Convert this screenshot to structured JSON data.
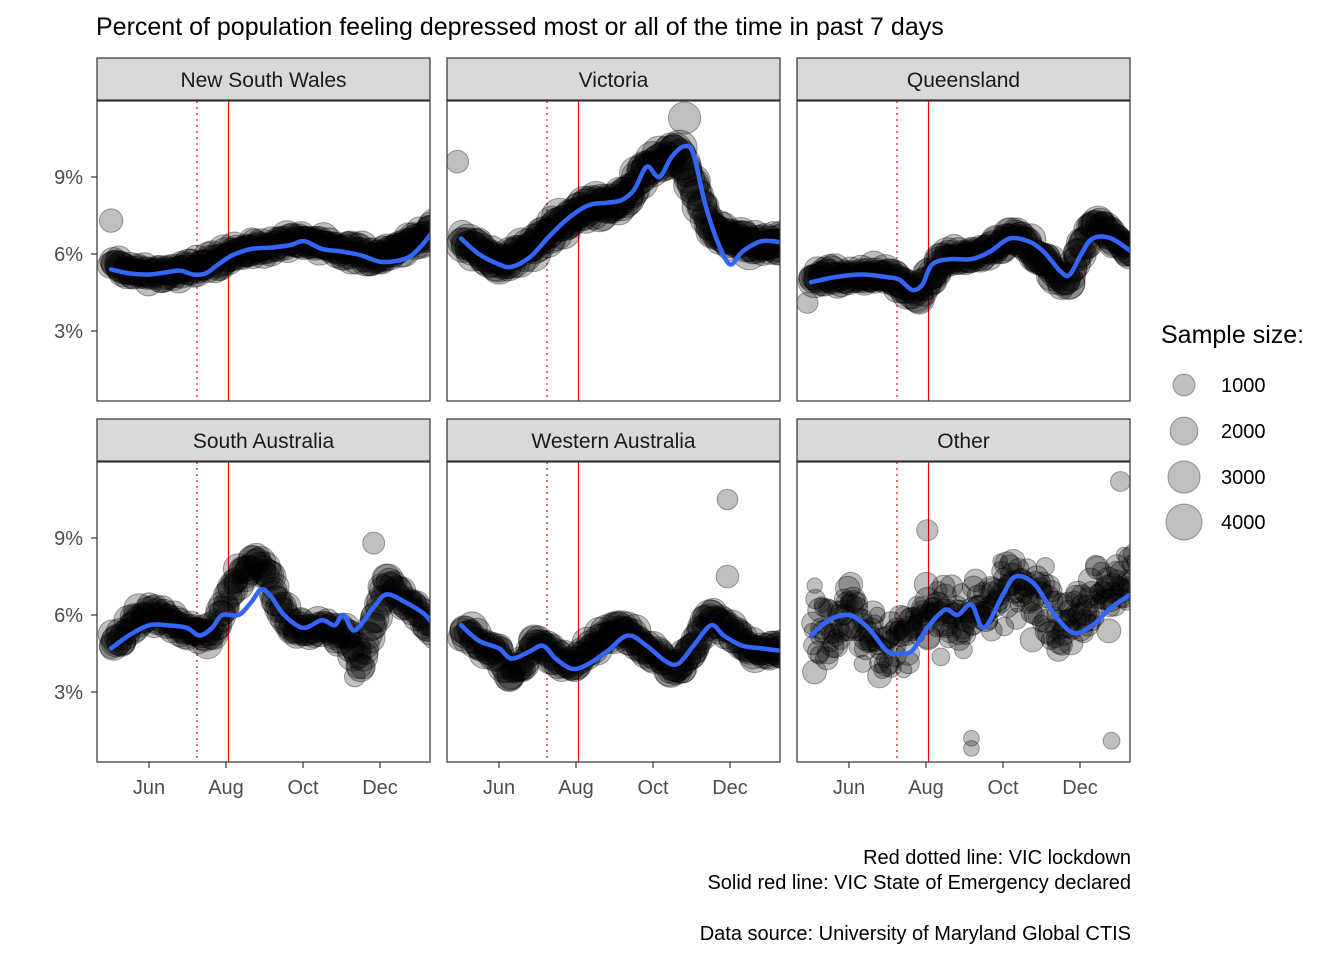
{
  "chart_data": {
    "type": "scatter",
    "title": "Percent of population feeling depressed most or all of the time in past 7 days",
    "xlabel": "",
    "ylabel": "",
    "x_ticks": [
      "Jun",
      "Aug",
      "Oct",
      "Dec"
    ],
    "y_ticks": [
      "3%",
      "6%",
      "9%"
    ],
    "ylim": [
      0,
      12
    ],
    "grid": false,
    "vlines": [
      {
        "date": "2020-07-08",
        "style": "dotted",
        "color": "#ff0000"
      },
      {
        "date": "2020-08-02",
        "style": "solid",
        "color": "#ff0000"
      }
    ],
    "smooth_color": "#3366ff",
    "point_color": "#000000",
    "point_alpha": 0.25,
    "legend": {
      "title": "Sample size:",
      "position": "right",
      "entries": [
        1000,
        2000,
        3000,
        4000
      ]
    },
    "panels": [
      {
        "name": "New South Wales",
        "smooth": [
          [
            "2020-05-01",
            5.4
          ],
          [
            "2020-05-15",
            5.25
          ],
          [
            "2020-05-31",
            5.2
          ],
          [
            "2020-06-15",
            5.3
          ],
          [
            "2020-06-25",
            5.35
          ],
          [
            "2020-07-05",
            5.2
          ],
          [
            "2020-07-15",
            5.25
          ],
          [
            "2020-07-25",
            5.6
          ],
          [
            "2020-08-05",
            5.95
          ],
          [
            "2020-08-20",
            6.2
          ],
          [
            "2020-09-05",
            6.25
          ],
          [
            "2020-09-20",
            6.35
          ],
          [
            "2020-10-01",
            6.5
          ],
          [
            "2020-10-15",
            6.2
          ],
          [
            "2020-10-30",
            6.1
          ],
          [
            "2020-11-15",
            5.95
          ],
          [
            "2020-11-30",
            5.7
          ],
          [
            "2020-12-15",
            5.75
          ],
          [
            "2020-12-25",
            5.95
          ],
          [
            "2021-01-05",
            6.5
          ],
          [
            "2021-01-12",
            7.0
          ]
        ],
        "points_center": [
          [
            "2020-05-01",
            5.6
          ],
          [
            "2020-06-01",
            5.2
          ],
          [
            "2020-07-01",
            5.4
          ],
          [
            "2020-08-01",
            5.9
          ],
          [
            "2020-09-01",
            6.3
          ],
          [
            "2020-10-01",
            6.6
          ],
          [
            "2020-11-01",
            6.1
          ],
          [
            "2020-12-01",
            5.8
          ],
          [
            "2021-01-10",
            7.0
          ]
        ],
        "spread": 0.45,
        "size_range": [
          1500,
          3000
        ],
        "outliers": [
          [
            "2020-05-01",
            7.3,
            1200
          ]
        ]
      },
      {
        "name": "Victoria",
        "smooth": [
          [
            "2020-05-01",
            6.6
          ],
          [
            "2020-05-15",
            6.0
          ],
          [
            "2020-05-31",
            5.6
          ],
          [
            "2020-06-10",
            5.5
          ],
          [
            "2020-06-25",
            5.9
          ],
          [
            "2020-07-10",
            6.7
          ],
          [
            "2020-07-25",
            7.4
          ],
          [
            "2020-08-10",
            7.9
          ],
          [
            "2020-08-25",
            8.0
          ],
          [
            "2020-09-05",
            8.1
          ],
          [
            "2020-09-15",
            8.5
          ],
          [
            "2020-09-25",
            9.4
          ],
          [
            "2020-10-05",
            9.0
          ],
          [
            "2020-10-15",
            9.8
          ],
          [
            "2020-10-25",
            10.2
          ],
          [
            "2020-11-01",
            9.9
          ],
          [
            "2020-11-10",
            8.0
          ],
          [
            "2020-11-20",
            6.5
          ],
          [
            "2020-11-30",
            5.6
          ],
          [
            "2020-12-10",
            6.1
          ],
          [
            "2020-12-25",
            6.5
          ],
          [
            "2021-01-10",
            6.45
          ]
        ],
        "points_center": [
          [
            "2020-05-01",
            6.6
          ],
          [
            "2020-05-31",
            5.6
          ],
          [
            "2020-07-05",
            6.5
          ],
          [
            "2020-08-05",
            7.8
          ],
          [
            "2020-09-05",
            8.1
          ],
          [
            "2020-10-01",
            9.6
          ],
          [
            "2020-10-20",
            10.0
          ],
          [
            "2020-11-15",
            7.0
          ],
          [
            "2020-12-15",
            6.4
          ],
          [
            "2021-01-10",
            6.4
          ]
        ],
        "spread": 0.55,
        "size_range": [
          1800,
          4000
        ],
        "outliers": [
          [
            "2020-04-28",
            9.6,
            1100
          ],
          [
            "2020-10-25",
            11.3,
            3000
          ]
        ]
      },
      {
        "name": "Queensland",
        "smooth": [
          [
            "2020-05-01",
            4.9
          ],
          [
            "2020-05-20",
            5.1
          ],
          [
            "2020-06-10",
            5.2
          ],
          [
            "2020-06-30",
            5.1
          ],
          [
            "2020-07-10",
            5.0
          ],
          [
            "2020-07-20",
            4.6
          ],
          [
            "2020-07-28",
            4.8
          ],
          [
            "2020-08-05",
            5.6
          ],
          [
            "2020-08-20",
            5.8
          ],
          [
            "2020-09-05",
            5.8
          ],
          [
            "2020-09-20",
            6.1
          ],
          [
            "2020-10-05",
            6.6
          ],
          [
            "2020-10-20",
            6.5
          ],
          [
            "2020-11-01",
            6.1
          ],
          [
            "2020-11-15",
            5.3
          ],
          [
            "2020-11-22",
            5.2
          ],
          [
            "2020-12-01",
            6.0
          ],
          [
            "2020-12-10",
            6.6
          ],
          [
            "2020-12-25",
            6.6
          ],
          [
            "2021-01-12",
            6.0
          ]
        ],
        "points_center": [
          [
            "2020-05-01",
            5.0
          ],
          [
            "2020-06-01",
            5.2
          ],
          [
            "2020-07-01",
            5.1
          ],
          [
            "2020-07-25",
            4.4
          ],
          [
            "2020-08-15",
            5.8
          ],
          [
            "2020-09-15",
            6.0
          ],
          [
            "2020-10-10",
            6.7
          ],
          [
            "2020-11-20",
            4.9
          ],
          [
            "2020-12-10",
            7.3
          ],
          [
            "2021-01-10",
            6.1
          ]
        ],
        "spread": 0.45,
        "size_range": [
          1500,
          3200
        ],
        "outliers": [
          [
            "2020-04-28",
            4.1,
            900
          ]
        ]
      },
      {
        "name": "South Australia",
        "smooth": [
          [
            "2020-05-01",
            4.7
          ],
          [
            "2020-05-15",
            5.2
          ],
          [
            "2020-05-31",
            5.6
          ],
          [
            "2020-06-15",
            5.6
          ],
          [
            "2020-06-30",
            5.5
          ],
          [
            "2020-07-10",
            5.2
          ],
          [
            "2020-07-20",
            5.5
          ],
          [
            "2020-07-28",
            6.0
          ],
          [
            "2020-08-10",
            6.0
          ],
          [
            "2020-08-20",
            6.5
          ],
          [
            "2020-08-28",
            7.0
          ],
          [
            "2020-09-05",
            6.7
          ],
          [
            "2020-09-15",
            6.0
          ],
          [
            "2020-09-30",
            5.5
          ],
          [
            "2020-10-15",
            5.8
          ],
          [
            "2020-10-25",
            5.6
          ],
          [
            "2020-11-01",
            6.0
          ],
          [
            "2020-11-10",
            5.4
          ],
          [
            "2020-11-25",
            6.3
          ],
          [
            "2020-12-05",
            6.8
          ],
          [
            "2020-12-20",
            6.5
          ],
          [
            "2021-01-05",
            6.0
          ],
          [
            "2021-01-12",
            5.5
          ]
        ],
        "points_center": [
          [
            "2020-05-01",
            4.8
          ],
          [
            "2020-06-01",
            6.2
          ],
          [
            "2020-07-01",
            5.4
          ],
          [
            "2020-07-20",
            5.2
          ],
          [
            "2020-08-05",
            7.0
          ],
          [
            "2020-08-25",
            8.3
          ],
          [
            "2020-09-20",
            5.5
          ],
          [
            "2020-10-15",
            5.5
          ],
          [
            "2020-11-05",
            5.2
          ],
          [
            "2020-11-15",
            4.0
          ],
          [
            "2020-12-05",
            7.3
          ],
          [
            "2021-01-10",
            5.5
          ]
        ],
        "spread": 0.6,
        "size_range": [
          1200,
          2800
        ],
        "outliers": [
          [
            "2020-11-25",
            8.8,
            1000
          ],
          [
            "2020-11-10",
            3.6,
            800
          ]
        ]
      },
      {
        "name": "Western Australia",
        "smooth": [
          [
            "2020-05-01",
            5.6
          ],
          [
            "2020-05-15",
            5.0
          ],
          [
            "2020-05-31",
            4.7
          ],
          [
            "2020-06-10",
            4.3
          ],
          [
            "2020-06-25",
            4.6
          ],
          [
            "2020-07-05",
            4.8
          ],
          [
            "2020-07-15",
            4.3
          ],
          [
            "2020-07-28",
            3.9
          ],
          [
            "2020-08-10",
            4.1
          ],
          [
            "2020-08-25",
            4.6
          ],
          [
            "2020-09-10",
            5.2
          ],
          [
            "2020-09-25",
            4.8
          ],
          [
            "2020-10-10",
            4.2
          ],
          [
            "2020-10-20",
            4.1
          ],
          [
            "2020-11-01",
            4.8
          ],
          [
            "2020-11-15",
            5.6
          ],
          [
            "2020-11-25",
            5.2
          ],
          [
            "2020-12-10",
            4.8
          ],
          [
            "2020-12-25",
            4.7
          ],
          [
            "2021-01-10",
            4.6
          ]
        ],
        "points_center": [
          [
            "2020-05-01",
            5.3
          ],
          [
            "2020-06-01",
            4.5
          ],
          [
            "2020-06-10",
            3.5
          ],
          [
            "2020-07-01",
            5.0
          ],
          [
            "2020-07-25",
            3.9
          ],
          [
            "2020-09-01",
            5.6
          ],
          [
            "2020-10-01",
            4.5
          ],
          [
            "2020-10-20",
            3.8
          ],
          [
            "2020-11-15",
            6.0
          ],
          [
            "2020-12-15",
            4.7
          ],
          [
            "2021-01-10",
            4.6
          ]
        ],
        "spread": 0.5,
        "size_range": [
          1200,
          3200
        ],
        "outliers": [
          [
            "2020-11-28",
            10.5,
            800
          ],
          [
            "2020-11-28",
            7.5,
            1100
          ]
        ]
      },
      {
        "name": "Other",
        "smooth": [
          [
            "2020-05-01",
            5.2
          ],
          [
            "2020-05-15",
            5.8
          ],
          [
            "2020-05-31",
            6.0
          ],
          [
            "2020-06-15",
            5.5
          ],
          [
            "2020-06-30",
            4.6
          ],
          [
            "2020-07-10",
            4.5
          ],
          [
            "2020-07-20",
            4.6
          ],
          [
            "2020-08-01",
            5.5
          ],
          [
            "2020-08-15",
            6.2
          ],
          [
            "2020-08-25",
            6.0
          ],
          [
            "2020-09-05",
            6.4
          ],
          [
            "2020-09-15",
            5.5
          ],
          [
            "2020-09-30",
            6.8
          ],
          [
            "2020-10-10",
            7.5
          ],
          [
            "2020-10-25",
            7.2
          ],
          [
            "2020-11-10",
            6.0
          ],
          [
            "2020-11-25",
            5.3
          ],
          [
            "2020-12-10",
            5.6
          ],
          [
            "2020-12-25",
            6.3
          ],
          [
            "2021-01-12",
            6.9
          ]
        ],
        "points_center": [
          [
            "2020-05-01",
            5.5
          ],
          [
            "2020-06-01",
            6.0
          ],
          [
            "2020-07-01",
            4.5
          ],
          [
            "2020-08-01",
            6.0
          ],
          [
            "2020-09-01",
            5.8
          ],
          [
            "2020-10-10",
            7.5
          ],
          [
            "2020-11-15",
            5.8
          ],
          [
            "2020-12-15",
            6.5
          ],
          [
            "2021-01-10",
            7.5
          ]
        ],
        "spread": 2.0,
        "size_range": [
          200,
          1400
        ],
        "outliers": [
          [
            "2020-08-01",
            9.3,
            900
          ],
          [
            "2020-09-05",
            1.2,
            300
          ],
          [
            "2020-09-05",
            0.8,
            300
          ],
          [
            "2020-12-25",
            1.1,
            400
          ],
          [
            "2021-01-01",
            11.2,
            700
          ]
        ]
      }
    ]
  },
  "caption": {
    "line1": "Red dotted line: VIC lockdown",
    "line2": "Solid red line: VIC State of Emergency declared",
    "line3": "Data source: University of Maryland Global CTIS"
  }
}
